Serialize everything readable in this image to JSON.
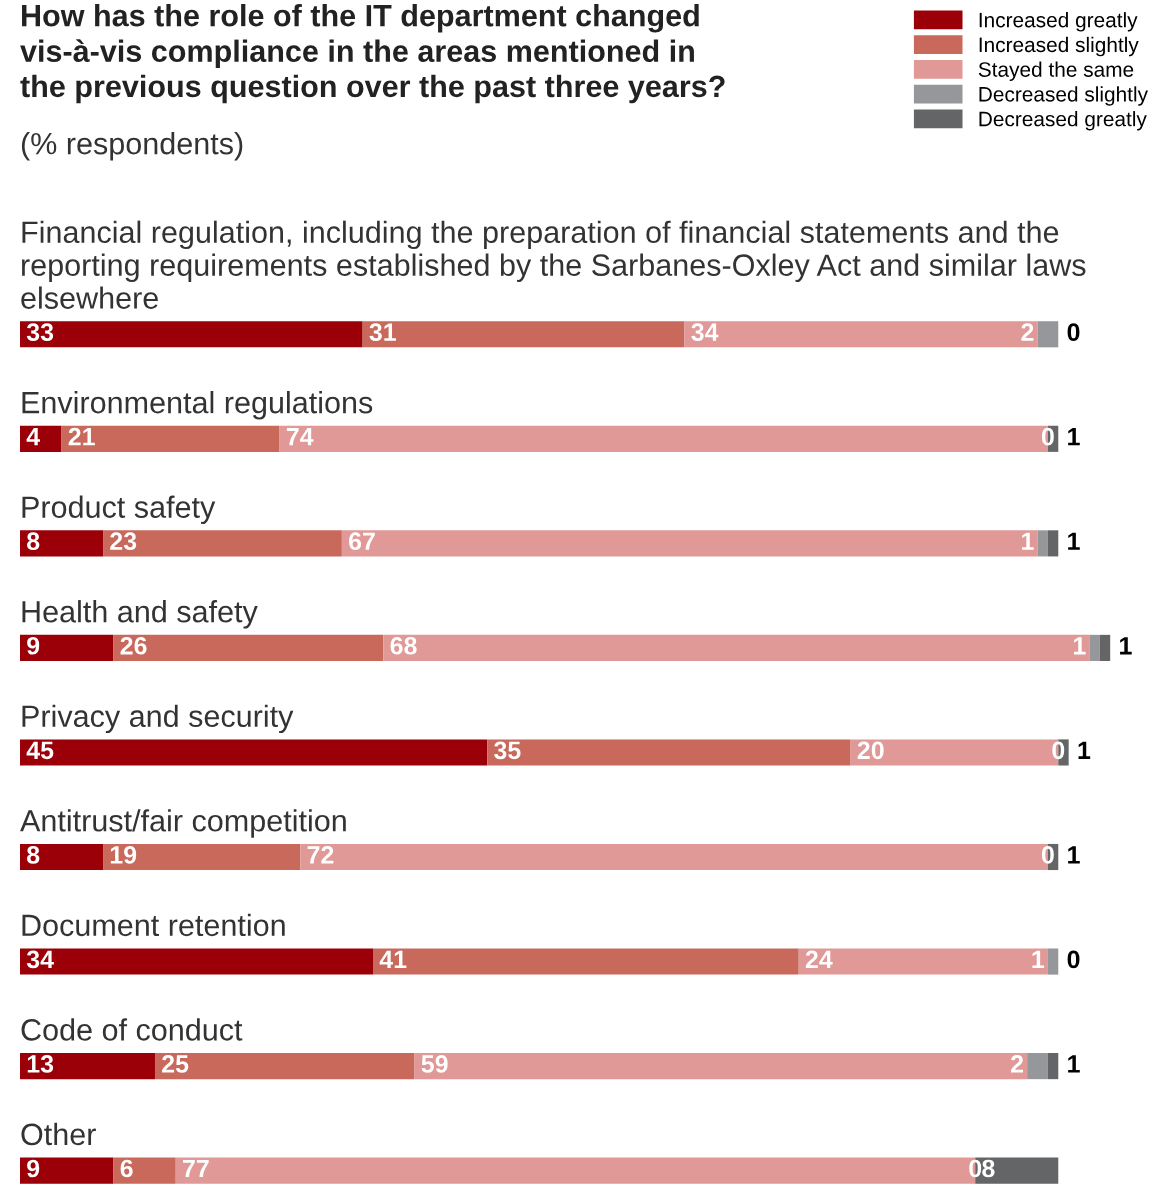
{
  "chart_data": {
    "type": "bar",
    "orientation": "horizontal",
    "stacked": true,
    "legend": "top right",
    "title": "How has the role of the IT department changed\nvis-à-vis compliance in the areas mentioned in\nthe previous question over the past three years?",
    "subtitle": "(% respondents)",
    "categories": [
      "Financial regulation, including the preparation of financial statements and the reporting requirements established by the Sarbanes-Oxley Act and similar laws elsewhere",
      "Environmental regulations",
      "Product safety",
      "Health and safety",
      "Privacy and security",
      "Antitrust/fair competition",
      "Document retention",
      "Code of conduct",
      "Other"
    ],
    "series": [
      {
        "name": "Increased greatly",
        "color": "#9b0009",
        "values": [
          33,
          4,
          8,
          9,
          45,
          8,
          34,
          13,
          9
        ],
        "value_labels": [
          "33",
          "4",
          "8",
          "9",
          "45",
          "8",
          "34",
          "13",
          "9"
        ]
      },
      {
        "name": "Increased slightly",
        "color": "#c8695c",
        "values": [
          31,
          21,
          23,
          26,
          35,
          19,
          41,
          25,
          6
        ],
        "value_labels": [
          "31",
          "21",
          "23",
          "26",
          "35",
          "19",
          "41",
          "25",
          "6"
        ]
      },
      {
        "name": "Stayed the same",
        "color": "#e09996",
        "values": [
          34,
          74,
          67,
          68,
          20,
          72,
          24,
          59,
          77
        ],
        "value_labels": [
          "34",
          "74",
          "67",
          "68",
          "20",
          "72",
          "24",
          "59",
          "77"
        ]
      },
      {
        "name": "Decreased slightly",
        "color": "#96979a",
        "values": [
          2,
          0,
          1,
          1,
          0,
          0,
          1,
          2,
          0
        ],
        "value_labels": [
          "2",
          "0",
          "1",
          "1",
          "0",
          "0",
          "1",
          "2",
          "0"
        ]
      },
      {
        "name": "Decreased greatly",
        "color": "#646567",
        "values": [
          0,
          1,
          1,
          1,
          1,
          1,
          0,
          1,
          8
        ],
        "value_labels": [
          "0",
          "1",
          "1",
          "1",
          "1",
          "1",
          "0",
          "1",
          "8"
        ]
      }
    ]
  }
}
